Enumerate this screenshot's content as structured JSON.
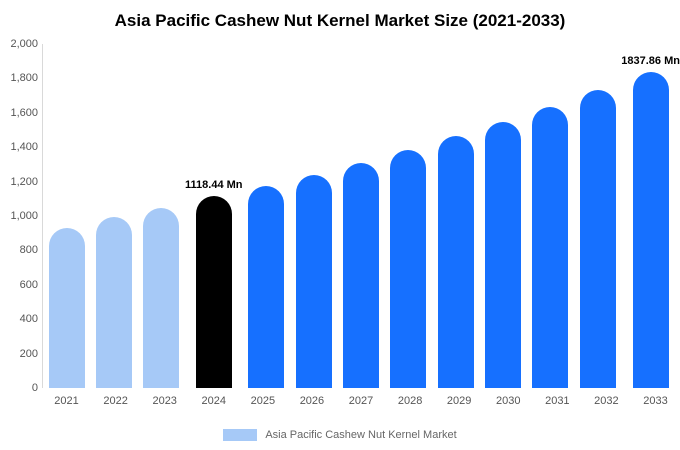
{
  "title": "Asia Pacific Cashew Nut Kernel Market Size (2021-2033)",
  "legend": {
    "label": "Asia Pacific Cashew Nut Kernel Market",
    "swatch_color": "#a6c9f7"
  },
  "colors": {
    "light_blue": "#a6c9f7",
    "highlight_black": "#000000",
    "primary_blue": "#1670ff",
    "axis_line": "#d9d9d9",
    "tick_text": "#555555"
  },
  "chart_data": {
    "type": "bar",
    "title": "Asia Pacific Cashew Nut Kernel Market Size (2021-2033)",
    "xlabel": "",
    "ylabel": "",
    "categories": [
      "2021",
      "2022",
      "2023",
      "2024",
      "2025",
      "2026",
      "2027",
      "2028",
      "2029",
      "2030",
      "2031",
      "2032",
      "2033"
    ],
    "values": [
      930,
      994,
      1046,
      1118.44,
      1174,
      1238,
      1308,
      1383,
      1465,
      1546,
      1634,
      1732,
      1837.86
    ],
    "bar_colors": [
      "#a6c9f7",
      "#a6c9f7",
      "#a6c9f7",
      "#000000",
      "#1670ff",
      "#1670ff",
      "#1670ff",
      "#1670ff",
      "#1670ff",
      "#1670ff",
      "#1670ff",
      "#1670ff",
      "#1670ff"
    ],
    "annotations": [
      {
        "index": 3,
        "text": "1118.44 Mn"
      },
      {
        "index": 12,
        "text": "1837.86 Mn"
      }
    ],
    "ylim": [
      0,
      2000
    ],
    "yticks": [
      "0",
      "200",
      "400",
      "600",
      "800",
      "1,000",
      "1,200",
      "1,400",
      "1,600",
      "1,800",
      "2,000"
    ],
    "grid": false,
    "legend_position": "bottom"
  }
}
